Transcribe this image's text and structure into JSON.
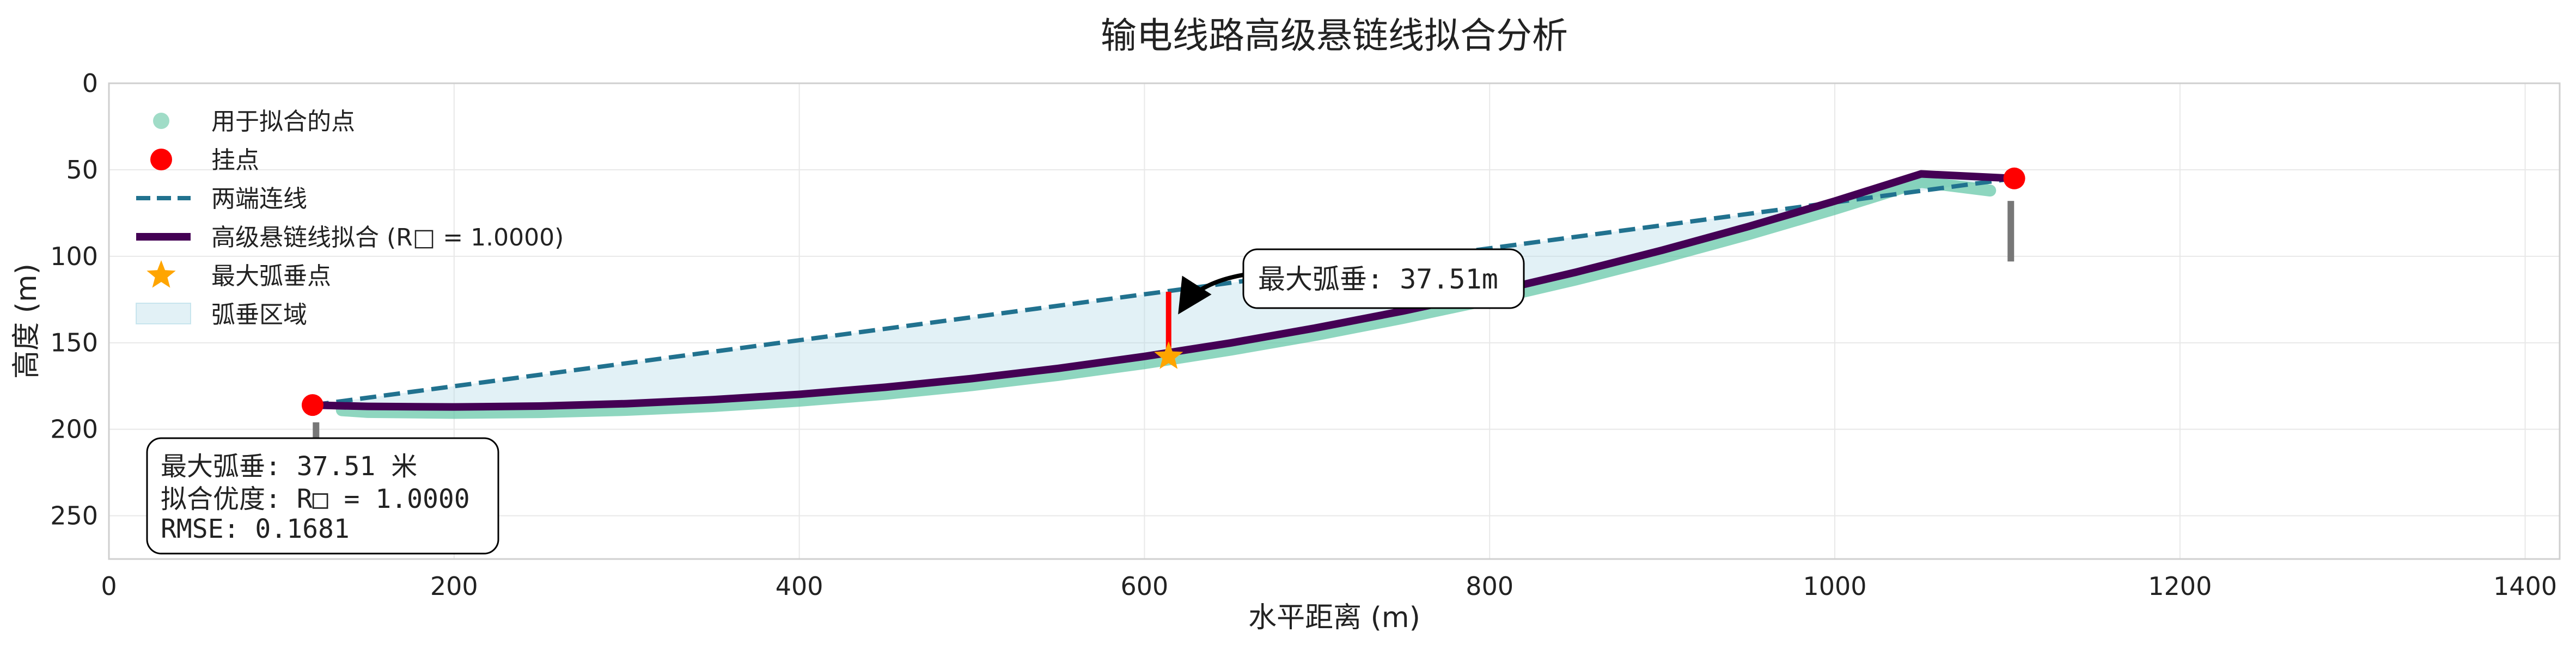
{
  "chart_data": {
    "type": "line",
    "title": "输电线路高级悬链线拟合分析",
    "xlabel": "水平距离 (m)",
    "ylabel": "高度 (m)",
    "xlim": [
      0,
      1420
    ],
    "ylim": [
      275,
      0
    ],
    "y_inverted": true,
    "grid": true,
    "legend_position": "top-left",
    "x_ticks": [
      0,
      200,
      400,
      600,
      800,
      1000,
      1200,
      1400
    ],
    "y_ticks": [
      0,
      50,
      100,
      150,
      200,
      250
    ],
    "legend": [
      {
        "key": "fit_points",
        "label": "用于拟合的点",
        "marker": "circle",
        "color": "#8fd6bd"
      },
      {
        "key": "suspension",
        "label": "挂点",
        "marker": "circle",
        "color": "#ff0000"
      },
      {
        "key": "chord",
        "label": "两端连线",
        "marker": "dashed-line",
        "color": "#21728f"
      },
      {
        "key": "catenary",
        "label": "高级悬链线拟合 (R□ = 1.0000)",
        "marker": "thick-line",
        "color": "#440154"
      },
      {
        "key": "max_sag_point",
        "label": "最大弧垂点",
        "marker": "star",
        "color": "#ffa500"
      },
      {
        "key": "sag_area",
        "label": "弧垂区域",
        "marker": "patch",
        "color": "#add8e6"
      }
    ],
    "suspension_points": [
      {
        "x": 118,
        "y": 186
      },
      {
        "x": 1104,
        "y": 55
      }
    ],
    "catenary_fit": {
      "x": [
        118,
        150,
        200,
        250,
        300,
        350,
        400,
        450,
        500,
        550,
        600,
        650,
        700,
        750,
        800,
        850,
        900,
        950,
        1000,
        1050,
        1104
      ],
      "y": [
        186,
        186.8,
        187.1,
        186.6,
        185.2,
        182.9,
        179.8,
        175.7,
        170.7,
        164.8,
        157.9,
        150.1,
        141.3,
        131.6,
        120.9,
        109.2,
        96.5,
        82.8,
        68.1,
        52.4,
        55
      ]
    },
    "fit_points": {
      "x": [
        135,
        150,
        200,
        250,
        300,
        350,
        400,
        450,
        500,
        550,
        600,
        650,
        700,
        750,
        800,
        850,
        900,
        950,
        1000,
        1050,
        1090
      ],
      "y": [
        189,
        190,
        190.5,
        190.1,
        188.8,
        186.6,
        183.5,
        179.5,
        174.5,
        168.6,
        161.8,
        154.0,
        145.3,
        135.6,
        125.0,
        113.4,
        100.8,
        87.2,
        72.6,
        57.0,
        62
      ]
    },
    "chord": {
      "x": [
        118,
        1104
      ],
      "y": [
        186,
        55
      ]
    },
    "max_sag": {
      "x": 614,
      "chord_y": 120.5,
      "curve_y": 158,
      "value": 37.51,
      "annotation": "最大弧垂: 37.51m"
    },
    "tower_markers": [
      {
        "x": 120,
        "y_top": 196,
        "y_bottom": 222
      },
      {
        "x": 1102,
        "y_top": 68,
        "y_bottom": 103
      }
    ],
    "stats": {
      "line1": "最大弧垂: 37.51 米",
      "line2": "拟合优度: R□ = 1.0000",
      "line3": "RMSE: 0.1681"
    },
    "colors": {
      "chord": "#21728f",
      "catenary": "#440154",
      "fit_points": "#5ec4a4",
      "suspension": "#ff0000",
      "max_sag_line": "#ff0000",
      "star": "#ffa500",
      "sag_area": "#add8e6",
      "tower": "#777777"
    }
  }
}
